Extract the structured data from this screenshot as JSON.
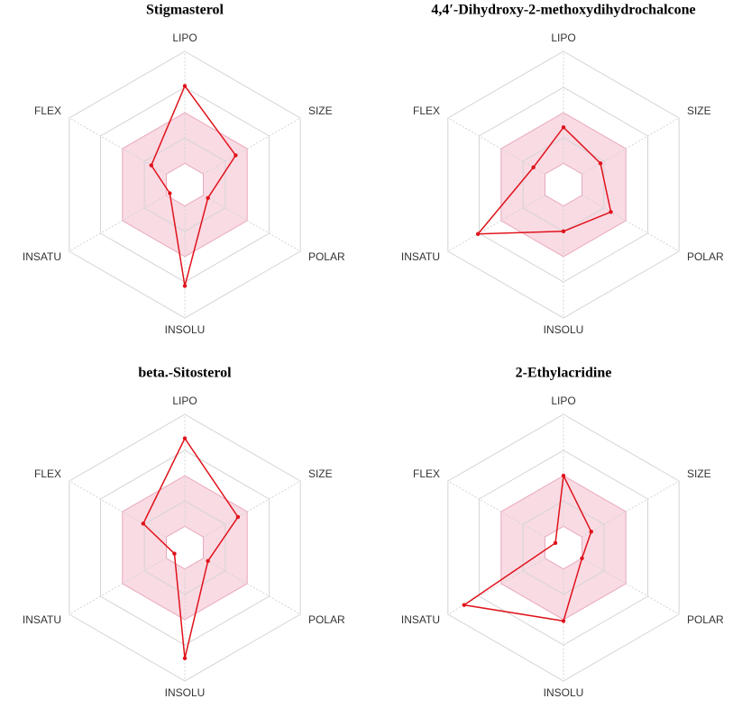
{
  "chart_data": [
    {
      "type": "radar",
      "title": "Stigmasterol",
      "categories": [
        "LIPO",
        "SIZE",
        "POLAR",
        "INSOLU",
        "INSATU",
        "FLEX"
      ],
      "values": [
        0.74,
        0.44,
        0.2,
        0.76,
        0.13,
        0.29
      ],
      "color": "#e0121b",
      "rlim": [
        0,
        1
      ],
      "rticks": [
        0.16,
        0.35,
        0.54,
        0.73,
        1
      ],
      "shaded_range": [
        0.16,
        0.54
      ],
      "shade_color": "#f9dbe4"
    },
    {
      "type": "radar",
      "title": "4,4′-Dihydroxy-2-methoxydihydrochalcone",
      "categories": [
        "LIPO",
        "SIZE",
        "POLAR",
        "INSOLU",
        "INSATU",
        "FLEX"
      ],
      "values": [
        0.43,
        0.32,
        0.41,
        0.35,
        0.74,
        0.26
      ],
      "color": "#e0121b",
      "rlim": [
        0,
        1
      ],
      "rticks": [
        0.16,
        0.35,
        0.54,
        0.73,
        1
      ],
      "shaded_range": [
        0.16,
        0.54
      ],
      "shade_color": "#f9dbe4"
    },
    {
      "type": "radar",
      "title": "beta.-Sitosterol",
      "categories": [
        "LIPO",
        "SIZE",
        "POLAR",
        "INSOLU",
        "INSATU",
        "FLEX"
      ],
      "values": [
        0.82,
        0.46,
        0.2,
        0.83,
        0.09,
        0.36
      ],
      "color": "#e0121b",
      "rlim": [
        0,
        1
      ],
      "rticks": [
        0.16,
        0.35,
        0.54,
        0.73,
        1
      ],
      "shaded_range": [
        0.16,
        0.54
      ],
      "shade_color": "#f9dbe4"
    },
    {
      "type": "radar",
      "title": "2-Ethylacridine",
      "categories": [
        "LIPO",
        "SIZE",
        "POLAR",
        "INSOLU",
        "INSATU",
        "FLEX"
      ],
      "values": [
        0.54,
        0.24,
        0.16,
        0.55,
        0.86,
        0.07
      ],
      "color": "#e0121b",
      "rlim": [
        0,
        1
      ],
      "rticks": [
        0.16,
        0.35,
        0.54,
        0.73,
        1
      ],
      "shaded_range": [
        0.16,
        0.54
      ],
      "shade_color": "#f9dbe4"
    }
  ]
}
